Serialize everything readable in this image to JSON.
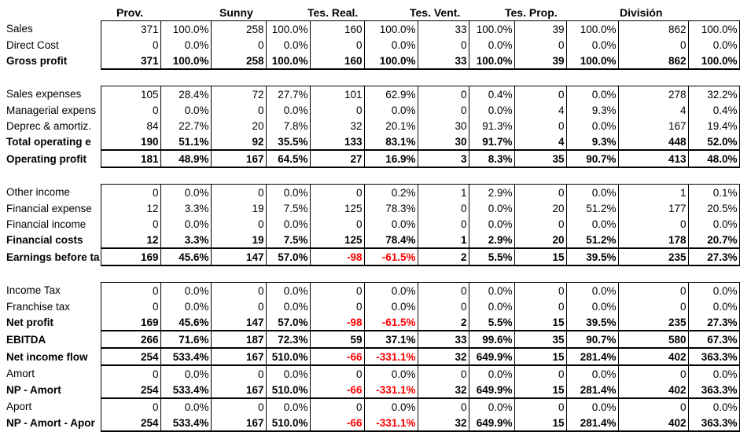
{
  "headers": [
    "Prov.",
    "Sunny",
    "Tes. Real.",
    "Tes. Vent.",
    "Tes. Prop.",
    "División"
  ],
  "sections": [
    {
      "rows": [
        {
          "label": "Sales",
          "bold": false,
          "cells": [
            "371",
            "100.0%",
            "258",
            "100.0%",
            "160",
            "100.0%",
            "33",
            "100.0%",
            "39",
            "100.0%",
            "862",
            "100.0%"
          ]
        },
        {
          "label": "Direct Cost",
          "bold": false,
          "cells": [
            "0",
            "0.0%",
            "0",
            "0.0%",
            "0",
            "0.0%",
            "0",
            "0.0%",
            "0",
            "0.0%",
            "0",
            "0.0%"
          ]
        },
        {
          "label": "Gross profit",
          "bold": true,
          "cells": [
            "371",
            "100.0%",
            "258",
            "100.0%",
            "160",
            "100.0%",
            "33",
            "100.0%",
            "39",
            "100.0%",
            "862",
            "100.0%"
          ]
        }
      ]
    },
    {
      "rows": [
        {
          "label": "Sales expenses",
          "bold": false,
          "cells": [
            "105",
            "28.4%",
            "72",
            "27.7%",
            "101",
            "62.9%",
            "0",
            "0.4%",
            "0",
            "0.0%",
            "278",
            "32.2%"
          ]
        },
        {
          "label": "Managerial expens",
          "bold": false,
          "cells": [
            "0",
            "0.0%",
            "0",
            "0.0%",
            "0",
            "0.0%",
            "0",
            "0.0%",
            "4",
            "9.3%",
            "4",
            "0.4%"
          ]
        },
        {
          "label": "Deprec & amortiz.",
          "bold": false,
          "cells": [
            "84",
            "22.7%",
            "20",
            "7.8%",
            "32",
            "20.1%",
            "30",
            "91.3%",
            "0",
            "0.0%",
            "167",
            "19.4%"
          ]
        },
        {
          "label": "Total operating e",
          "bold": true,
          "cells": [
            "190",
            "51.1%",
            "92",
            "35.5%",
            "133",
            "83.1%",
            "30",
            "91.7%",
            "4",
            "9.3%",
            "448",
            "52.0%"
          ]
        },
        {
          "label": "Operating profit",
          "bold": true,
          "cells": [
            "181",
            "48.9%",
            "167",
            "64.5%",
            "27",
            "16.9%",
            "3",
            "8.3%",
            "35",
            "90.7%",
            "413",
            "48.0%"
          ]
        }
      ]
    },
    {
      "rows": [
        {
          "label": "Other income",
          "bold": false,
          "cells": [
            "0",
            "0.0%",
            "0",
            "0.0%",
            "0",
            "0.2%",
            "1",
            "2.9%",
            "0",
            "0.0%",
            "1",
            "0.1%"
          ]
        },
        {
          "label": "Financial expense",
          "bold": false,
          "cells": [
            "12",
            "3.3%",
            "19",
            "7.5%",
            "125",
            "78.3%",
            "0",
            "0.0%",
            "20",
            "51.2%",
            "177",
            "20.5%"
          ]
        },
        {
          "label": "Financial income",
          "bold": false,
          "cells": [
            "0",
            "0.0%",
            "0",
            "0.0%",
            "0",
            "0.0%",
            "0",
            "0.0%",
            "0",
            "0.0%",
            "0",
            "0.0%"
          ]
        },
        {
          "label": "Financial costs",
          "bold": true,
          "cells": [
            "12",
            "3.3%",
            "19",
            "7.5%",
            "125",
            "78.4%",
            "1",
            "2.9%",
            "20",
            "51.2%",
            "178",
            "20.7%"
          ]
        },
        {
          "label": "Earnings before ta",
          "bold": true,
          "cells": [
            "169",
            "45.6%",
            "147",
            "57.0%",
            "-98",
            "-61.5%",
            "2",
            "5.5%",
            "15",
            "39.5%",
            "235",
            "27.3%"
          ]
        }
      ]
    },
    {
      "rows": [
        {
          "label": "Income Tax",
          "bold": false,
          "cells": [
            "0",
            "0.0%",
            "0",
            "0.0%",
            "0",
            "0.0%",
            "0",
            "0.0%",
            "0",
            "0.0%",
            "0",
            "0.0%"
          ]
        },
        {
          "label": "Franchise tax",
          "bold": false,
          "cells": [
            "0",
            "0.0%",
            "0",
            "0.0%",
            "0",
            "0.0%",
            "0",
            "0.0%",
            "0",
            "0.0%",
            "0",
            "0.0%"
          ]
        },
        {
          "label": "Net profit",
          "bold": true,
          "cells": [
            "169",
            "45.6%",
            "147",
            "57.0%",
            "-98",
            "-61.5%",
            "2",
            "5.5%",
            "15",
            "39.5%",
            "235",
            "27.3%"
          ]
        },
        {
          "label": "EBITDA",
          "bold": true,
          "cells": [
            "266",
            "71.6%",
            "187",
            "72.3%",
            "59",
            "37.1%",
            "33",
            "99.6%",
            "35",
            "90.7%",
            "580",
            "67.3%"
          ]
        },
        {
          "label": "Net income flow",
          "bold": true,
          "cells": [
            "254",
            "533.4%",
            "167",
            "510.0%",
            "-66",
            "-331.1%",
            "32",
            "649.9%",
            "15",
            "281.4%",
            "402",
            "363.3%"
          ]
        },
        {
          "label": "Amort",
          "bold": false,
          "cells": [
            "0",
            "0.0%",
            "0",
            "0.0%",
            "0",
            "0.0%",
            "0",
            "0.0%",
            "0",
            "0.0%",
            "0",
            "0.0%"
          ]
        },
        {
          "label": "NP - Amort",
          "bold": true,
          "cells": [
            "254",
            "533.4%",
            "167",
            "510.0%",
            "-66",
            "-331.1%",
            "32",
            "649.9%",
            "15",
            "281.4%",
            "402",
            "363.3%"
          ]
        },
        {
          "label": "Aport",
          "bold": false,
          "cells": [
            "0",
            "0.0%",
            "0",
            "0.0%",
            "0",
            "0.0%",
            "0",
            "0.0%",
            "0",
            "0.0%",
            "0",
            "0.0%"
          ]
        },
        {
          "label": "NP - Amort - Apor",
          "bold": true,
          "cells": [
            "254",
            "533.4%",
            "167",
            "510.0%",
            "-66",
            "-331.1%",
            "32",
            "649.9%",
            "15",
            "281.4%",
            "402",
            "363.3%"
          ]
        }
      ]
    }
  ],
  "colors": {
    "negative": "#ff0000",
    "border": "#000000",
    "background": "#ffffff"
  }
}
